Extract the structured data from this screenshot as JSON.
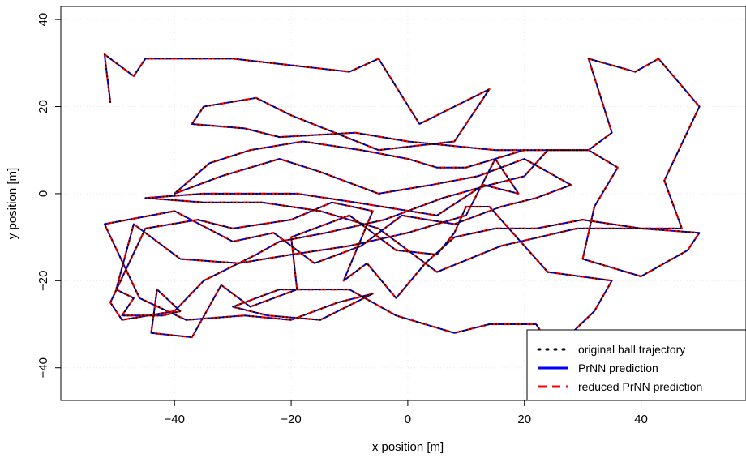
{
  "chart_data": {
    "type": "line",
    "title": "",
    "xlabel": "x position [m]",
    "ylabel": "y position [m]",
    "xlim": [
      -59.5,
      58
    ],
    "ylim": [
      -47.5,
      43
    ],
    "x_ticks": [
      -40,
      -20,
      0,
      20,
      40
    ],
    "y_ticks": [
      -40,
      -20,
      0,
      20,
      40
    ],
    "x_tick_labels": [
      "−40",
      "−20",
      "0",
      "20",
      "40"
    ],
    "y_tick_labels": [
      "−40",
      "−20",
      "0",
      "20",
      "40"
    ],
    "grid": true,
    "legend_position": "bottom-right",
    "colors": {
      "original": "#000000",
      "prnn": "#0000ff",
      "reduced": "#ff0000",
      "grid": "#e6e6e6"
    },
    "series": [
      {
        "name": "original ball trajectory",
        "style": "dotted"
      },
      {
        "name": "PrNN prediction",
        "style": "solid"
      },
      {
        "name": "reduced PrNN prediction",
        "style": "dashed"
      }
    ],
    "trajectory": [
      [
        -51,
        21
      ],
      [
        -52,
        32
      ],
      [
        -47,
        27
      ],
      [
        -45,
        31
      ],
      [
        -30,
        31
      ],
      [
        -10,
        28
      ],
      [
        -5,
        31
      ],
      [
        2,
        16
      ],
      [
        8,
        20
      ],
      [
        14,
        24
      ],
      [
        8,
        12
      ],
      [
        -5,
        10
      ],
      [
        -20,
        18
      ],
      [
        -26,
        22
      ],
      [
        -35,
        20
      ],
      [
        -37,
        16
      ],
      [
        -28,
        15
      ],
      [
        -22,
        13
      ],
      [
        -9,
        14
      ],
      [
        0,
        12
      ],
      [
        15,
        10
      ],
      [
        31,
        10
      ],
      [
        35,
        14
      ],
      [
        31,
        31
      ],
      [
        39,
        28
      ],
      [
        43,
        31
      ],
      [
        50,
        20
      ],
      [
        44,
        3
      ],
      [
        47,
        -8
      ],
      [
        29,
        -8
      ],
      [
        16,
        -12
      ],
      [
        5,
        -18
      ],
      [
        -5,
        -8
      ],
      [
        -15,
        -4
      ],
      [
        -25,
        -2
      ],
      [
        -35,
        -2
      ],
      [
        -45,
        -1
      ],
      [
        -35,
        0
      ],
      [
        -19,
        0
      ],
      [
        -9,
        -2
      ],
      [
        5,
        -5
      ],
      [
        13,
        2
      ],
      [
        19,
        0
      ],
      [
        15,
        8
      ],
      [
        10,
        -5
      ],
      [
        0,
        -9
      ],
      [
        -10,
        -12
      ],
      [
        -20,
        -14
      ],
      [
        -29,
        -16
      ],
      [
        -39,
        -15
      ],
      [
        -47,
        -7
      ],
      [
        -50,
        -22
      ],
      [
        -47,
        -24
      ],
      [
        -49,
        -28
      ],
      [
        -42,
        -28
      ],
      [
        -39,
        -27
      ],
      [
        -43,
        -22
      ],
      [
        -44,
        -32
      ],
      [
        -37,
        -33
      ],
      [
        -32,
        -21
      ],
      [
        -27,
        -26
      ],
      [
        -19,
        -22
      ],
      [
        -20,
        -10
      ],
      [
        -10,
        -5
      ],
      [
        -2,
        -13
      ],
      [
        5,
        -14
      ],
      [
        8,
        -9
      ],
      [
        10,
        -3
      ],
      [
        14,
        -3
      ],
      [
        24,
        -18
      ],
      [
        35,
        -20
      ],
      [
        32,
        -27
      ],
      [
        25,
        -36
      ],
      [
        22,
        -30
      ],
      [
        14,
        -30
      ],
      [
        8,
        -32
      ],
      [
        -2,
        -28
      ],
      [
        -10,
        -22
      ],
      [
        -22,
        -22
      ],
      [
        -30,
        -26
      ],
      [
        -24,
        -28
      ],
      [
        -15,
        -29
      ],
      [
        -6,
        -23
      ],
      [
        -12,
        -25
      ],
      [
        -20,
        -29
      ],
      [
        -28,
        -28
      ],
      [
        -38,
        -29
      ],
      [
        -46,
        -24
      ],
      [
        -52,
        -7
      ],
      [
        -40,
        -4
      ],
      [
        -30,
        -11
      ],
      [
        -23,
        -9
      ],
      [
        -16,
        -16
      ],
      [
        -8,
        -12
      ],
      [
        -1,
        -5
      ],
      [
        8,
        -7
      ],
      [
        16,
        -3
      ],
      [
        22,
        -1
      ],
      [
        28,
        2
      ],
      [
        20,
        8
      ],
      [
        12,
        4
      ],
      [
        4,
        2
      ],
      [
        -5,
        0
      ],
      [
        -15,
        5
      ],
      [
        -22,
        8
      ],
      [
        -32,
        4
      ],
      [
        -40,
        0
      ],
      [
        -34,
        7
      ],
      [
        -27,
        10
      ],
      [
        -18,
        12
      ],
      [
        -8,
        10
      ],
      [
        0,
        8
      ],
      [
        5,
        6
      ],
      [
        10,
        6
      ],
      [
        20,
        10
      ],
      [
        31,
        10
      ],
      [
        36,
        6
      ],
      [
        32,
        -3
      ],
      [
        30,
        -15
      ],
      [
        40,
        -19
      ],
      [
        48,
        -13
      ],
      [
        50,
        -9
      ],
      [
        40,
        -8
      ],
      [
        30,
        -6
      ],
      [
        22,
        -8
      ],
      [
        15,
        -8
      ],
      [
        8,
        -10
      ],
      [
        3,
        -16
      ],
      [
        -2,
        -24
      ],
      [
        -7,
        -16
      ],
      [
        -11,
        -20
      ],
      [
        -6,
        -4
      ],
      [
        -13,
        -2
      ],
      [
        -20,
        -6
      ],
      [
        -30,
        -8
      ],
      [
        -36,
        -6
      ],
      [
        -45,
        -8
      ],
      [
        -51,
        -25
      ],
      [
        -49,
        -29
      ],
      [
        -40,
        -27
      ],
      [
        -35,
        -20
      ],
      [
        -26,
        -14
      ],
      [
        -22,
        -11
      ],
      [
        -14,
        -9
      ],
      [
        -4,
        -6
      ],
      [
        6,
        -1
      ],
      [
        14,
        2
      ],
      [
        20,
        4
      ],
      [
        24,
        10
      ],
      [
        31,
        10
      ]
    ]
  }
}
